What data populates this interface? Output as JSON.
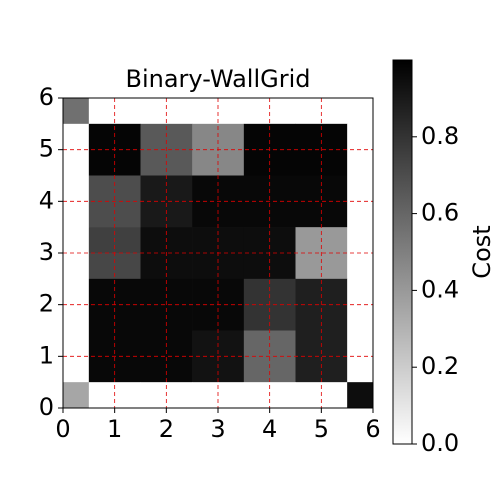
{
  "chart_data": {
    "type": "heatmap",
    "title": "Binary-WallGrid",
    "values": [
      [
        0.56,
        0,
        0,
        0,
        0,
        0,
        0,
        0,
        0,
        0,
        0,
        0
      ],
      [
        0,
        0.98,
        0.98,
        0.65,
        0.65,
        0.47,
        0.47,
        0.98,
        0.98,
        0.98,
        0.98,
        0
      ],
      [
        0,
        0.98,
        0.98,
        0.65,
        0.65,
        0.47,
        0.47,
        0.98,
        0.98,
        0.98,
        0.98,
        0
      ],
      [
        0,
        0.7,
        0.7,
        0.9,
        0.9,
        0.97,
        0.97,
        0.97,
        0.97,
        0.97,
        0.97,
        0
      ],
      [
        0,
        0.7,
        0.7,
        0.9,
        0.9,
        0.97,
        0.97,
        0.97,
        0.97,
        0.97,
        0.97,
        0
      ],
      [
        0,
        0.75,
        0.75,
        0.95,
        0.95,
        0.95,
        0.95,
        0.95,
        0.95,
        0.4,
        0.4,
        0
      ],
      [
        0,
        0.72,
        0.72,
        0.95,
        0.95,
        0.95,
        0.95,
        0.95,
        0.95,
        0.4,
        0.4,
        0
      ],
      [
        0,
        0.97,
        0.97,
        0.97,
        0.97,
        0.97,
        0.97,
        0.8,
        0.8,
        0.88,
        0.88,
        0
      ],
      [
        0,
        0.97,
        0.97,
        0.97,
        0.97,
        0.97,
        0.97,
        0.8,
        0.8,
        0.88,
        0.88,
        0
      ],
      [
        0,
        0.97,
        0.97,
        0.97,
        0.97,
        0.93,
        0.93,
        0.6,
        0.6,
        0.88,
        0.88,
        0
      ],
      [
        0,
        0.97,
        0.97,
        0.97,
        0.97,
        0.93,
        0.93,
        0.6,
        0.6,
        0.88,
        0.88,
        0
      ],
      [
        0.35,
        0,
        0,
        0,
        0,
        0,
        0,
        0,
        0,
        0,
        0,
        0.95
      ]
    ],
    "colormap": "gray_r",
    "xlim": [
      0,
      6
    ],
    "ylim": [
      0,
      6
    ],
    "xticks": [
      0,
      1,
      2,
      3,
      4,
      5,
      6
    ],
    "yticks": [
      0,
      1,
      2,
      3,
      4,
      5,
      6
    ],
    "grid": true,
    "grid_color": "#e00000",
    "colorbar_label": "Cost",
    "clim": [
      0,
      1
    ],
    "colorbar_ticks": [
      {
        "value": 0,
        "label": "0.0"
      },
      {
        "value": 0.2,
        "label": "0.2"
      },
      {
        "value": 0.4,
        "label": "0.4"
      },
      {
        "value": 0.6,
        "label": "0.6"
      },
      {
        "value": 0.8,
        "label": "0.8"
      }
    ]
  }
}
